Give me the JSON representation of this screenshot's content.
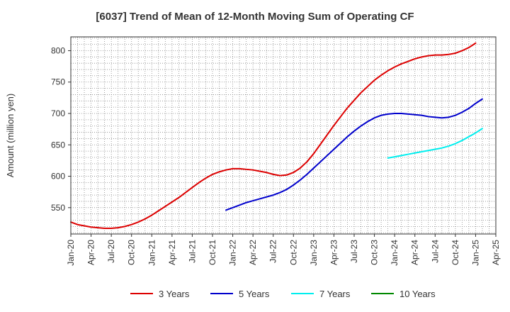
{
  "chart_data": {
    "type": "line",
    "title": "[6037]  Trend of Mean of 12-Month Moving Sum of Operating CF",
    "xlabel": "",
    "ylabel": "Amount (million yen)",
    "ylim": [
      508,
      822
    ],
    "yticks": [
      550,
      600,
      650,
      700,
      750,
      800
    ],
    "x_categories": [
      "Jan-20",
      "Apr-20",
      "Jul-20",
      "Oct-20",
      "Jan-21",
      "Apr-21",
      "Jul-21",
      "Oct-21",
      "Jan-22",
      "Apr-22",
      "Jul-22",
      "Oct-22",
      "Jan-23",
      "Apr-23",
      "Jul-23",
      "Oct-23",
      "Jan-24",
      "Apr-24",
      "Jul-24",
      "Oct-24",
      "Jan-25",
      "Apr-25"
    ],
    "grid": true,
    "legend_position": "bottom",
    "series": [
      {
        "name": "3 Years",
        "color": "#dd0000",
        "x_start": "Jan-20",
        "values": [
          527,
          523,
          521,
          519,
          518,
          517,
          517,
          518,
          520,
          523,
          527,
          532,
          538,
          545,
          552,
          559,
          566,
          574,
          582,
          590,
          597,
          603,
          607,
          610,
          612,
          612,
          611,
          610,
          608,
          606,
          603,
          601,
          602,
          606,
          613,
          623,
          636,
          651,
          666,
          681,
          695,
          709,
          721,
          733,
          743,
          753,
          761,
          768,
          774,
          779,
          783,
          787,
          790,
          792,
          793,
          793,
          794,
          796,
          800,
          805,
          812
        ]
      },
      {
        "name": "5 Years",
        "color": "#0000cc",
        "x_start": "Dec-21",
        "values": [
          546,
          550,
          554,
          558,
          561,
          564,
          567,
          570,
          574,
          579,
          586,
          594,
          603,
          613,
          623,
          633,
          643,
          653,
          663,
          672,
          680,
          687,
          693,
          697,
          699,
          700,
          700,
          699,
          698,
          697,
          695,
          694,
          693,
          694,
          697,
          702,
          708,
          716,
          723
        ]
      },
      {
        "name": "7 Years",
        "color": "#00eeee",
        "x_start": "Dec-23",
        "values": [
          629,
          631,
          633,
          635,
          637,
          639,
          641,
          643,
          645,
          648,
          652,
          657,
          663,
          669,
          676
        ]
      },
      {
        "name": "10 Years",
        "color": "#008800",
        "x_start": "",
        "values": []
      }
    ]
  }
}
